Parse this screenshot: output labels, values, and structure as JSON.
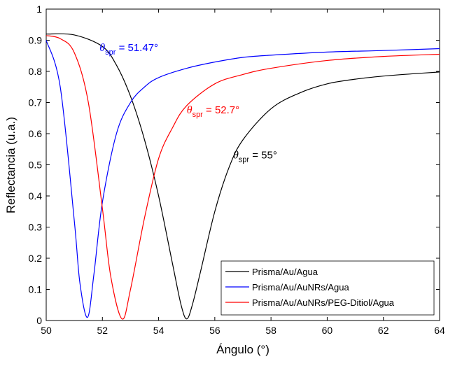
{
  "chart_data": {
    "type": "line",
    "xlabel": "Ángulo (°)",
    "ylabel": "Reflectancia (u.a.)",
    "xlim": [
      50,
      64
    ],
    "ylim": [
      0,
      1
    ],
    "xticks": [
      "50",
      "52",
      "54",
      "56",
      "58",
      "60",
      "62",
      "64"
    ],
    "yticks": [
      "0",
      "0.1",
      "0.2",
      "0.3",
      "0.4",
      "0.5",
      "0.6",
      "0.7",
      "0.8",
      "0.9",
      "1"
    ],
    "grid": false,
    "legend_position": "bottom-right",
    "series": [
      {
        "name": "Prisma/Au/Agua",
        "color": "#000000",
        "theta_spr": 55.0,
        "x": [
          50,
          51,
          52,
          52.5,
          53,
          53.5,
          54,
          54.5,
          54.8,
          55,
          55.2,
          55.5,
          56,
          56.5,
          57,
          58,
          59,
          60,
          61,
          62,
          63,
          64
        ],
        "y": [
          0.92,
          0.917,
          0.88,
          0.82,
          0.72,
          0.58,
          0.4,
          0.18,
          0.05,
          0.005,
          0.05,
          0.16,
          0.35,
          0.49,
          0.58,
          0.68,
          0.73,
          0.76,
          0.775,
          0.785,
          0.792,
          0.798
        ]
      },
      {
        "name": "Prisma/Au/AuNRs/Agua",
        "color": "#0000ff",
        "theta_spr": 51.47,
        "x": [
          50,
          50.5,
          51,
          51.2,
          51.47,
          51.7,
          52,
          52.5,
          53,
          53.5,
          54,
          55,
          56,
          57,
          58,
          60,
          62,
          64
        ],
        "y": [
          0.9,
          0.75,
          0.32,
          0.12,
          0.01,
          0.15,
          0.38,
          0.6,
          0.7,
          0.75,
          0.78,
          0.81,
          0.83,
          0.845,
          0.852,
          0.862,
          0.867,
          0.873
        ]
      },
      {
        "name": "Prisma/Au/AuNRs/PEG-Ditiol/Agua",
        "color": "#ff0000",
        "theta_spr": 52.7,
        "x": [
          50,
          50.5,
          51,
          51.5,
          52,
          52.3,
          52.7,
          53,
          53.5,
          54,
          54.5,
          55,
          56,
          57,
          58,
          60,
          62,
          64
        ],
        "y": [
          0.915,
          0.905,
          0.86,
          0.7,
          0.36,
          0.14,
          0.005,
          0.1,
          0.33,
          0.52,
          0.62,
          0.69,
          0.76,
          0.79,
          0.81,
          0.835,
          0.848,
          0.855
        ]
      }
    ],
    "annotations": [
      {
        "theta": "θ",
        "sub": "spr",
        "text": " = 51.47°",
        "color": "#0000ff",
        "x": 51.9,
        "y": 0.865
      },
      {
        "theta": "θ",
        "sub": "spr",
        "text": " = 52.7°",
        "color": "#ff0000",
        "x": 55.0,
        "y": 0.665
      },
      {
        "theta": "θ",
        "sub": "spr",
        "text": " = 55°",
        "color": "#000000",
        "x": 56.65,
        "y": 0.52
      }
    ]
  }
}
